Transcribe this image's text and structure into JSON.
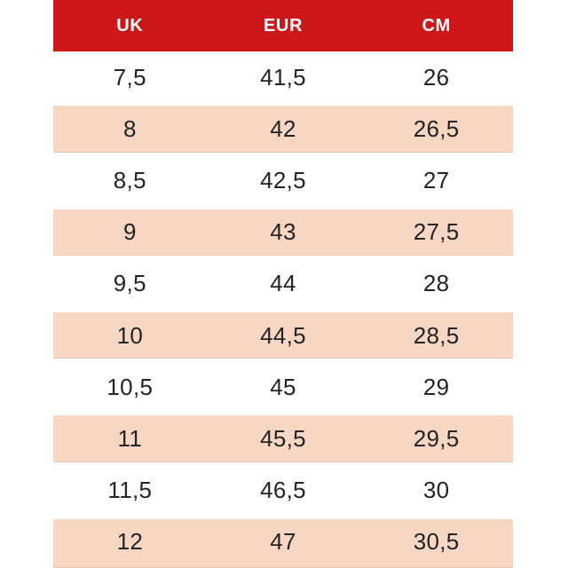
{
  "chart_data": {
    "type": "table",
    "columns": [
      "UK",
      "EUR",
      "CM"
    ],
    "rows": [
      {
        "uk": "7,5",
        "eur": "41,5",
        "cm": "26"
      },
      {
        "uk": "8",
        "eur": "42",
        "cm": "26,5"
      },
      {
        "uk": "8,5",
        "eur": "42,5",
        "cm": "27"
      },
      {
        "uk": "9",
        "eur": "43",
        "cm": "27,5"
      },
      {
        "uk": "9,5",
        "eur": "44",
        "cm": "28"
      },
      {
        "uk": "10",
        "eur": "44,5",
        "cm": "28,5"
      },
      {
        "uk": "10,5",
        "eur": "45",
        "cm": "29"
      },
      {
        "uk": "11",
        "eur": "45,5",
        "cm": "29,5"
      },
      {
        "uk": "11,5",
        "eur": "46,5",
        "cm": "30"
      },
      {
        "uk": "12",
        "eur": "47",
        "cm": "30,5"
      }
    ],
    "layout": {
      "header_position": "top",
      "striped": true,
      "stripe_rows": [
        "8",
        "9",
        "10",
        "11",
        "12"
      ],
      "column_alignment": "center"
    }
  },
  "colors": {
    "page_bg": "#ffffff",
    "header_bg": "#cd1719",
    "header_text": "#ffffff",
    "stripe_bg": "#f7d6c4",
    "stripe_border": "#eec5ae",
    "cell_text": "#242424"
  }
}
